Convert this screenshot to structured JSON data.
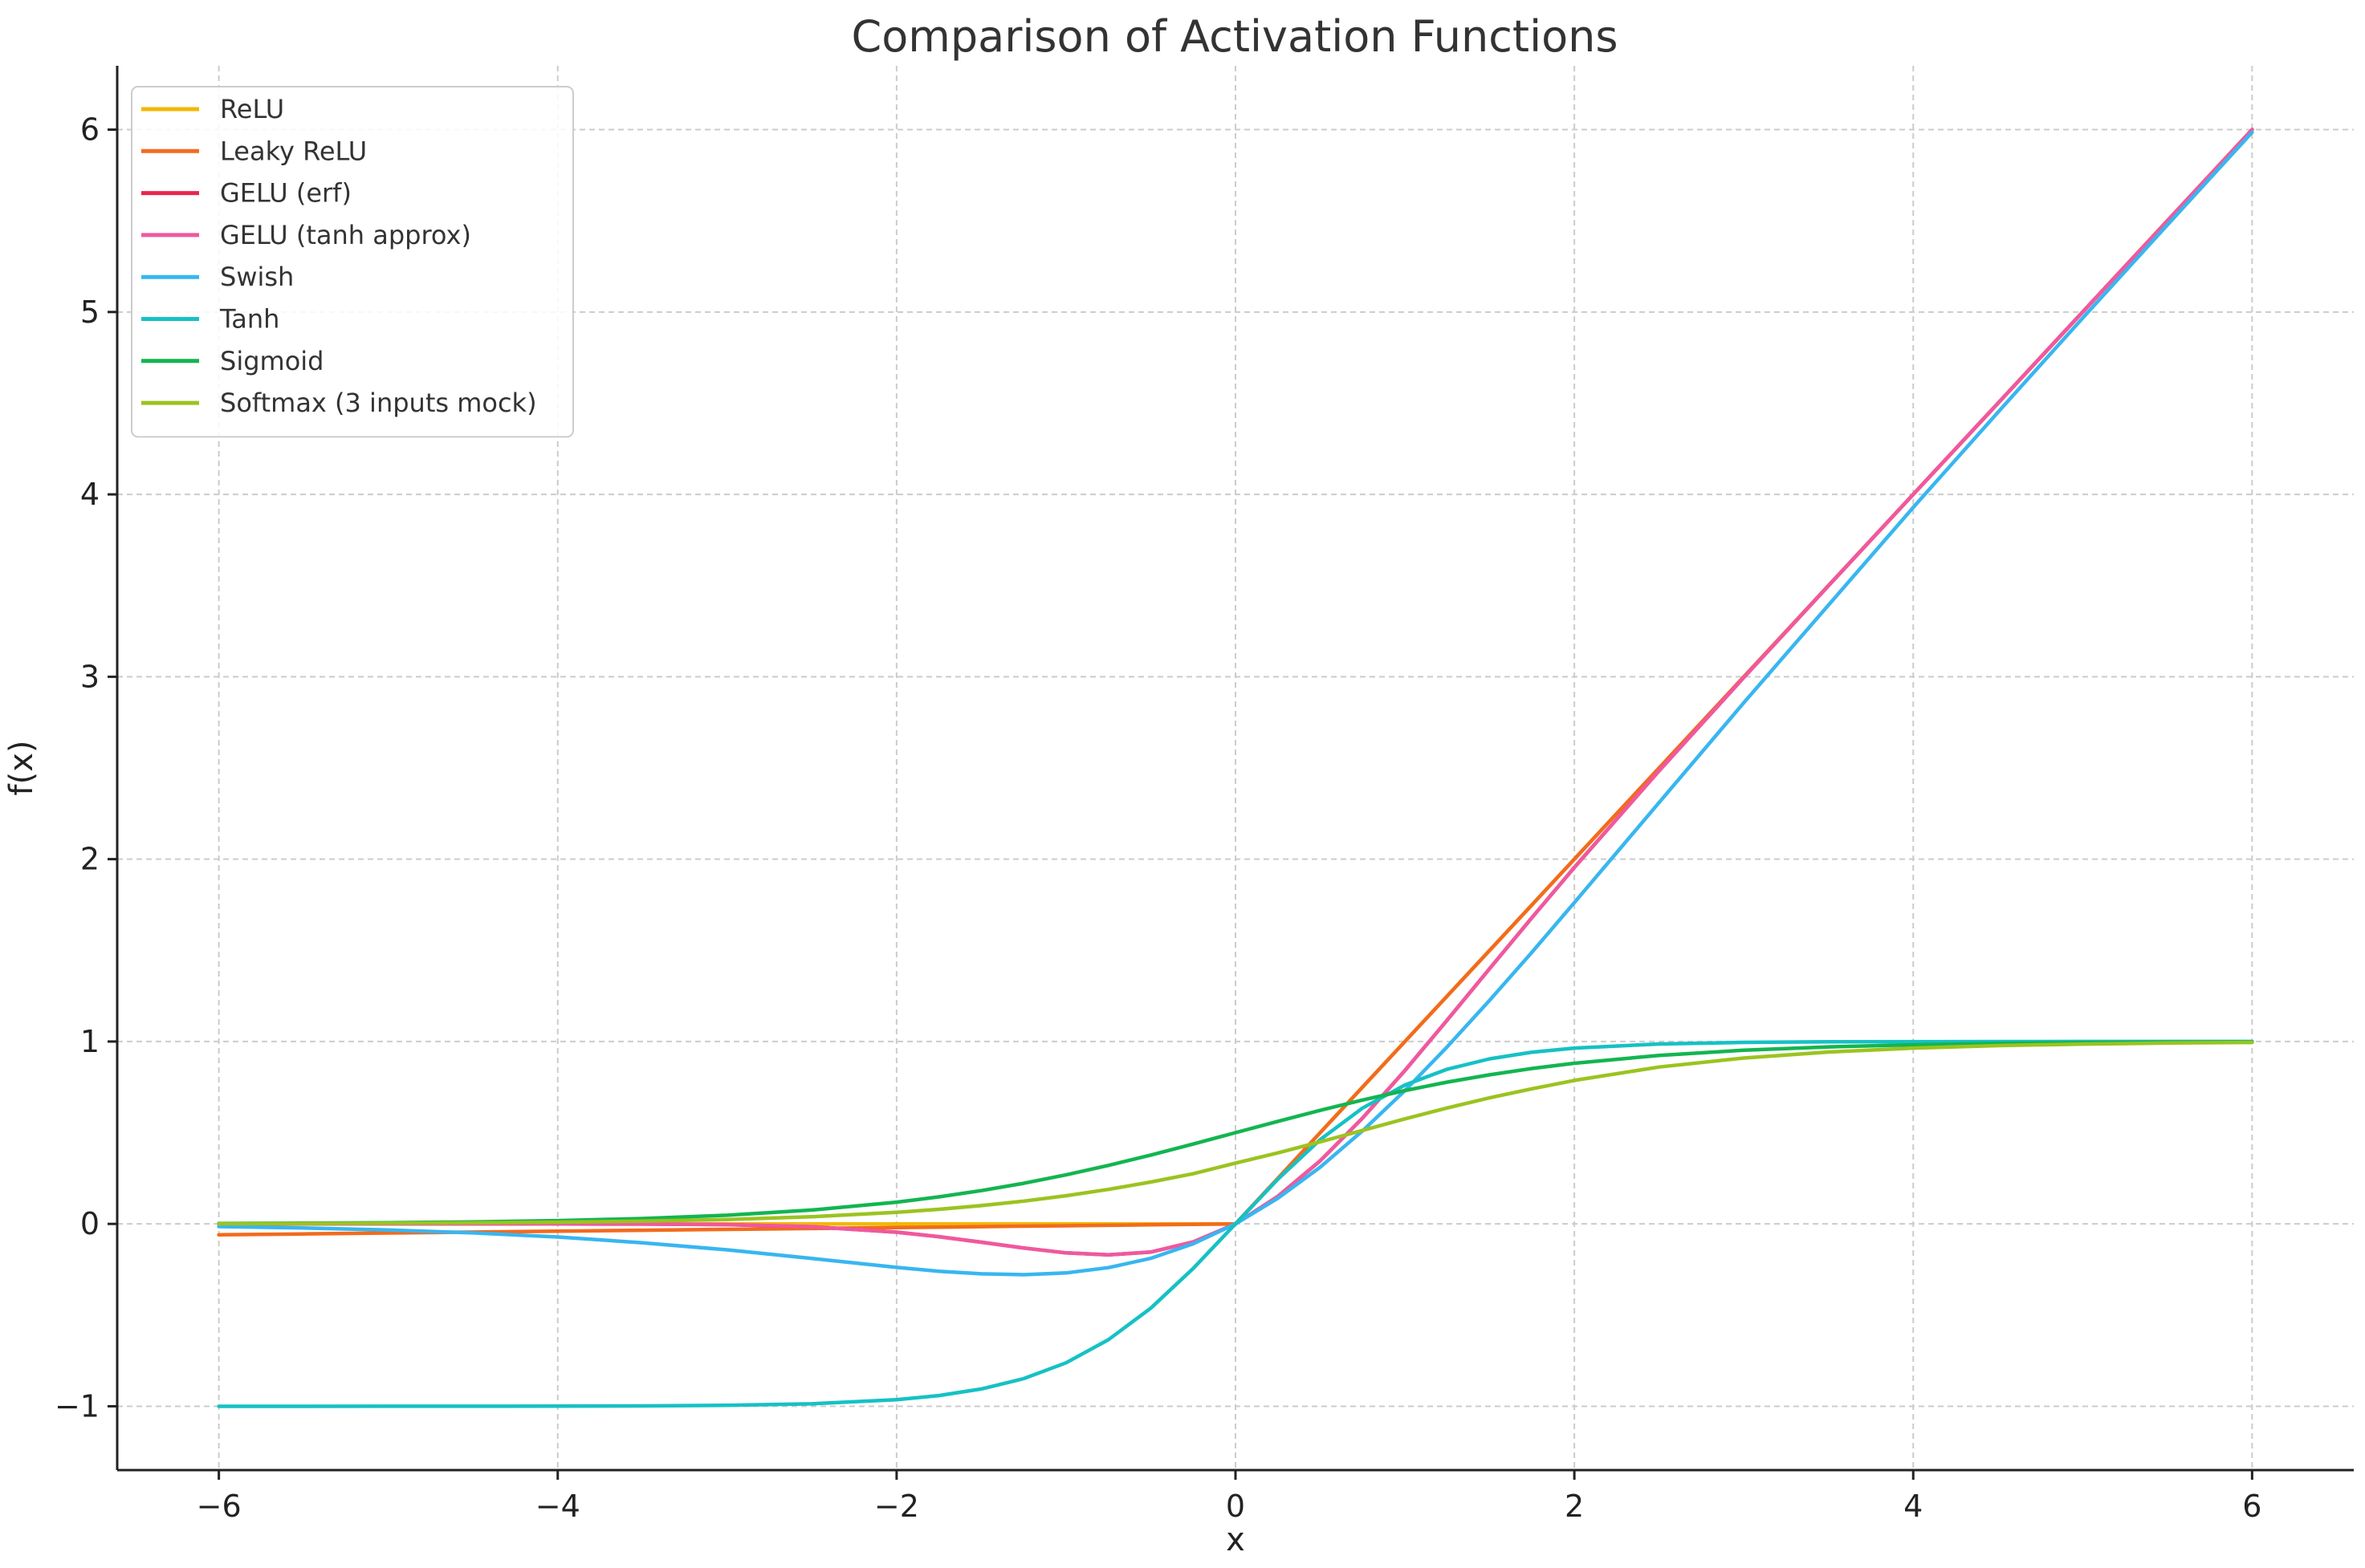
{
  "chart_data": {
    "type": "line",
    "title": "Comparison of Activation Functions",
    "xlabel": "x",
    "ylabel": "f(x)",
    "xlim": [
      -6.6,
      6.6
    ],
    "ylim": [
      -1.35,
      6.35
    ],
    "xticks": [
      -6,
      -4,
      -2,
      0,
      2,
      4,
      6
    ],
    "yticks": [
      -1,
      0,
      1,
      2,
      3,
      4,
      5,
      6
    ],
    "xtick_labels": [
      "−6",
      "−4",
      "−2",
      "0",
      "2",
      "4",
      "6"
    ],
    "ytick_labels": [
      "−1",
      "0",
      "1",
      "2",
      "3",
      "4",
      "5",
      "6"
    ],
    "grid": true,
    "legend_position": "upper-left",
    "x": [
      -6,
      -5.5,
      -5,
      -4.5,
      -4,
      -3.5,
      -3,
      -2.5,
      -2,
      -1.75,
      -1.5,
      -1.25,
      -1,
      -0.75,
      -0.5,
      -0.25,
      0,
      0.25,
      0.5,
      0.75,
      1,
      1.25,
      1.5,
      1.75,
      2,
      2.5,
      3,
      3.5,
      4,
      4.5,
      5,
      5.5,
      6
    ],
    "series": [
      {
        "name": "ReLU",
        "color": "#f2b705",
        "values": [
          0,
          0,
          0,
          0,
          0,
          0,
          0,
          0,
          0,
          0,
          0,
          0,
          0,
          0,
          0,
          0,
          0,
          0.25,
          0.5,
          0.75,
          1,
          1.25,
          1.5,
          1.75,
          2,
          2.5,
          3,
          3.5,
          4,
          4.5,
          5,
          5.5,
          6
        ]
      },
      {
        "name": "Leaky ReLU",
        "color": "#f26b1d",
        "values": [
          -0.06,
          -0.055,
          -0.05,
          -0.045,
          -0.04,
          -0.035,
          -0.03,
          -0.025,
          -0.02,
          -0.0175,
          -0.015,
          -0.0125,
          -0.01,
          -0.0075,
          -0.005,
          -0.0025,
          0,
          0.25,
          0.5,
          0.75,
          1,
          1.25,
          1.5,
          1.75,
          2,
          2.5,
          3,
          3.5,
          4,
          4.5,
          5,
          5.5,
          6
        ]
      },
      {
        "name": "GELU (erf)",
        "color": "#e8254e",
        "values": [
          0,
          0,
          0,
          0,
          -0.0001,
          -0.0008,
          -0.004,
          -0.0155,
          -0.0455,
          -0.0701,
          -0.1002,
          -0.132,
          -0.1587,
          -0.1699,
          -0.1543,
          -0.0991,
          0,
          0.1509,
          0.3457,
          0.5801,
          0.8413,
          1.118,
          1.3998,
          1.6799,
          1.9545,
          2.4845,
          2.996,
          3.4992,
          3.9999,
          4.5,
          5,
          5.5,
          6
        ]
      },
      {
        "name": "GELU (tanh approx)",
        "color": "#f0589f",
        "values": [
          0,
          0,
          0,
          0,
          -0.0001,
          -0.0009,
          -0.0036,
          -0.0154,
          -0.0454,
          -0.0703,
          -0.1005,
          -0.1324,
          -0.1588,
          -0.1696,
          -0.1543,
          -0.0991,
          0,
          0.1509,
          0.3457,
          0.5804,
          0.8412,
          1.1176,
          1.3995,
          1.6797,
          1.9546,
          2.4846,
          2.9964,
          3.4991,
          3.9999,
          4.5,
          5,
          5.5,
          6
        ]
      },
      {
        "name": "Swish",
        "color": "#38b6f0",
        "values": [
          -0.0148,
          -0.0224,
          -0.0335,
          -0.0493,
          -0.0719,
          -0.1033,
          -0.1423,
          -0.1896,
          -0.2384,
          -0.2595,
          -0.2736,
          -0.2785,
          -0.2689,
          -0.2397,
          -0.1888,
          -0.1094,
          0,
          0.1406,
          0.3112,
          0.5103,
          0.7311,
          0.9716,
          1.2264,
          1.4904,
          1.7616,
          2.3104,
          2.8577,
          3.3933,
          3.9281,
          4.4507,
          4.9665,
          5.4775,
          5.9852
        ]
      },
      {
        "name": "Tanh",
        "color": "#16c1c4",
        "values": [
          -1,
          -1,
          -0.9999,
          -0.9998,
          -0.9993,
          -0.9982,
          -0.9951,
          -0.9866,
          -0.964,
          -0.9414,
          -0.9051,
          -0.8483,
          -0.7616,
          -0.6351,
          -0.4621,
          -0.2449,
          0,
          0.2449,
          0.4621,
          0.6351,
          0.7616,
          0.8483,
          0.9051,
          0.9414,
          0.964,
          0.9866,
          0.9951,
          0.9982,
          0.9993,
          0.9998,
          0.9999,
          1,
          1
        ]
      },
      {
        "name": "Sigmoid",
        "color": "#13b550",
        "values": [
          0.0025,
          0.0041,
          0.0067,
          0.011,
          0.018,
          0.0293,
          0.0474,
          0.0759,
          0.1192,
          0.148,
          0.1824,
          0.2227,
          0.2689,
          0.3208,
          0.3775,
          0.4378,
          0.5,
          0.5622,
          0.6225,
          0.6792,
          0.7311,
          0.7773,
          0.8176,
          0.852,
          0.8808,
          0.9241,
          0.9526,
          0.9707,
          0.982,
          0.989,
          0.9933,
          0.9959,
          0.9975
        ]
      },
      {
        "name": "Softmax (3 inputs mock)",
        "color": "#9bc320",
        "values": [
          0.0012,
          0.0021,
          0.0034,
          0.0055,
          0.0091,
          0.0149,
          0.0243,
          0.0392,
          0.0634,
          0.0799,
          0.1001,
          0.1247,
          0.1544,
          0.1893,
          0.2295,
          0.2748,
          0.3333,
          0.3895,
          0.4501,
          0.5124,
          0.5761,
          0.6357,
          0.6913,
          0.741,
          0.7867,
          0.8601,
          0.9094,
          0.9423,
          0.9638,
          0.9775,
          0.9861,
          0.9915,
          0.9948
        ]
      }
    ]
  }
}
